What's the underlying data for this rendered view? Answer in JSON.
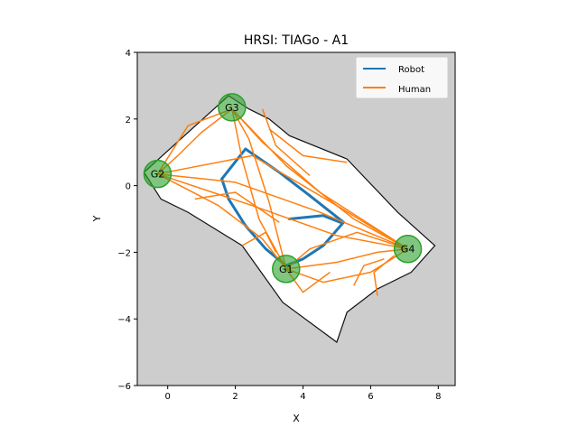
{
  "chart_data": {
    "type": "line",
    "title": "HRSI: TIAGo - A1",
    "xlabel": "X",
    "ylabel": "Y",
    "xlim": [
      -0.9,
      8.5
    ],
    "ylim": [
      -6,
      4
    ],
    "xticks": [
      0,
      2,
      4,
      6,
      8
    ],
    "yticks": [
      -6,
      -4,
      -2,
      0,
      2,
      4
    ],
    "xtick_labels": [
      "0",
      "2",
      "4",
      "6",
      "8"
    ],
    "ytick_labels": [
      "−6",
      "−4",
      "−2",
      "0",
      "2",
      "4"
    ],
    "grid": false,
    "legend_position": "top-right",
    "colors": {
      "robot": "#1f77b4",
      "human": "#ff7f0e",
      "goal": "#2ca02c",
      "unknown_map": "#cdcdcd",
      "free_map": "#ffffff"
    },
    "map_free_space": [
      [
        -0.7,
        0.4
      ],
      [
        1.8,
        2.7
      ],
      [
        2.4,
        2.3
      ],
      [
        3.0,
        2.0
      ],
      [
        3.6,
        1.5
      ],
      [
        5.3,
        0.8
      ],
      [
        6.8,
        -0.8
      ],
      [
        7.9,
        -1.8
      ],
      [
        7.2,
        -2.6
      ],
      [
        6.2,
        -3.1
      ],
      [
        5.3,
        -3.8
      ],
      [
        5.0,
        -4.7
      ],
      [
        3.4,
        -3.5
      ],
      [
        2.2,
        -1.8
      ],
      [
        0.6,
        -0.8
      ],
      [
        -0.2,
        -0.4
      ]
    ],
    "goals": [
      {
        "label": "G1",
        "x": 3.5,
        "y": -2.5
      },
      {
        "label": "G2",
        "x": -0.3,
        "y": 0.35
      },
      {
        "label": "G3",
        "x": 1.9,
        "y": 2.35
      },
      {
        "label": "G4",
        "x": 7.1,
        "y": -1.9
      }
    ],
    "series": [
      {
        "name": "Robot",
        "color": "#1f77b4",
        "paths": [
          [
            [
              1.6,
              0.2
            ],
            [
              2.3,
              1.1
            ],
            [
              3.3,
              0.4
            ],
            [
              4.2,
              -0.3
            ],
            [
              5.2,
              -1.1
            ],
            [
              4.6,
              -1.8
            ],
            [
              4.0,
              -2.2
            ],
            [
              3.5,
              -2.4
            ]
          ],
          [
            [
              3.5,
              -2.4
            ],
            [
              2.9,
              -1.9
            ],
            [
              2.3,
              -1.2
            ],
            [
              1.8,
              -0.4
            ],
            [
              1.6,
              0.2
            ]
          ],
          [
            [
              3.6,
              -1.0
            ],
            [
              4.6,
              -0.9
            ],
            [
              5.1,
              -1.1
            ]
          ]
        ]
      },
      {
        "name": "Human",
        "color": "#ff7f0e",
        "paths": [
          [
            [
              3.5,
              -2.5
            ],
            [
              2.7,
              -1.0
            ],
            [
              2.2,
              0.8
            ],
            [
              1.9,
              2.3
            ]
          ],
          [
            [
              1.9,
              2.3
            ],
            [
              3.5,
              0.6
            ],
            [
              5.5,
              -1.0
            ],
            [
              7.1,
              -1.9
            ]
          ],
          [
            [
              7.1,
              -1.9
            ],
            [
              5.0,
              -1.5
            ],
            [
              2.5,
              -0.6
            ],
            [
              -0.3,
              0.35
            ]
          ],
          [
            [
              -0.3,
              0.35
            ],
            [
              1.5,
              -0.6
            ],
            [
              2.8,
              -1.6
            ],
            [
              3.5,
              -2.5
            ]
          ],
          [
            [
              3.5,
              -2.5
            ],
            [
              5.0,
              -2.3
            ],
            [
              6.2,
              -2.0
            ],
            [
              7.1,
              -1.9
            ]
          ],
          [
            [
              7.1,
              -1.9
            ],
            [
              4.5,
              -0.2
            ],
            [
              2.8,
              1.3
            ],
            [
              1.9,
              2.3
            ]
          ],
          [
            [
              1.9,
              2.3
            ],
            [
              1.0,
              1.6
            ],
            [
              0.3,
              0.9
            ],
            [
              -0.3,
              0.35
            ]
          ],
          [
            [
              -0.3,
              0.35
            ],
            [
              2.0,
              0.1
            ],
            [
              4.5,
              -0.8
            ],
            [
              7.1,
              -1.9
            ]
          ],
          [
            [
              7.1,
              -1.9
            ],
            [
              6.0,
              -2.6
            ],
            [
              4.6,
              -2.9
            ],
            [
              3.5,
              -2.5
            ]
          ],
          [
            [
              3.5,
              -2.5
            ],
            [
              3.0,
              -0.5
            ],
            [
              2.4,
              1.4
            ],
            [
              1.9,
              2.3
            ]
          ],
          [
            [
              1.9,
              2.3
            ],
            [
              0.6,
              1.8
            ],
            [
              -0.3,
              0.35
            ]
          ],
          [
            [
              -0.3,
              0.35
            ],
            [
              2.5,
              0.9
            ],
            [
              5.0,
              -0.6
            ],
            [
              7.1,
              -1.9
            ]
          ],
          [
            [
              7.1,
              -1.9
            ],
            [
              5.6,
              -1.4
            ],
            [
              4.2,
              -1.9
            ],
            [
              3.5,
              -2.5
            ]
          ],
          [
            [
              3.5,
              -2.5
            ],
            [
              4.0,
              -3.2
            ],
            [
              4.8,
              -2.6
            ]
          ],
          [
            [
              5.5,
              -3.0
            ],
            [
              5.8,
              -2.4
            ],
            [
              6.4,
              -2.2
            ]
          ],
          [
            [
              2.2,
              -1.8
            ],
            [
              2.9,
              -1.4
            ],
            [
              3.2,
              -2.0
            ]
          ],
          [
            [
              3.0,
              1.7
            ],
            [
              4.0,
              0.9
            ],
            [
              5.3,
              0.7
            ]
          ],
          [
            [
              6.2,
              -3.3
            ],
            [
              6.1,
              -2.6
            ],
            [
              6.7,
              -2.1
            ]
          ],
          [
            [
              0.8,
              -0.4
            ],
            [
              2.0,
              -0.2
            ],
            [
              3.3,
              -1.1
            ]
          ],
          [
            [
              2.8,
              2.3
            ],
            [
              3.2,
              1.2
            ],
            [
              4.2,
              0.3
            ]
          ]
        ]
      }
    ]
  }
}
